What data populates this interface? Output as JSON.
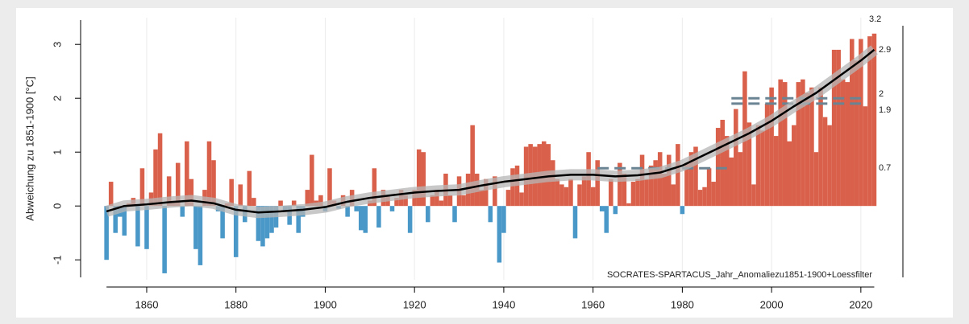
{
  "chart_data": {
    "type": "bar",
    "ylabel": "Abweichung zu 1851-1900 [°C]",
    "annotation": "SOCRATES-SPARTACUS_Jahr_Anomaliezu1851-1900+Loessfilter",
    "positive_color": "#d9604a",
    "negative_color": "#4a98c8",
    "x": [
      1851,
      1852,
      1853,
      1854,
      1855,
      1856,
      1857,
      1858,
      1859,
      1860,
      1861,
      1862,
      1863,
      1864,
      1865,
      1866,
      1867,
      1868,
      1869,
      1870,
      1871,
      1872,
      1873,
      1874,
      1875,
      1876,
      1877,
      1878,
      1879,
      1880,
      1881,
      1882,
      1883,
      1884,
      1885,
      1886,
      1887,
      1888,
      1889,
      1890,
      1891,
      1892,
      1893,
      1894,
      1895,
      1896,
      1897,
      1898,
      1899,
      1900,
      1901,
      1902,
      1903,
      1904,
      1905,
      1906,
      1907,
      1908,
      1909,
      1910,
      1911,
      1912,
      1913,
      1914,
      1915,
      1916,
      1917,
      1918,
      1919,
      1920,
      1921,
      1922,
      1923,
      1924,
      1925,
      1926,
      1927,
      1928,
      1929,
      1930,
      1931,
      1932,
      1933,
      1934,
      1935,
      1936,
      1937,
      1938,
      1939,
      1940,
      1941,
      1942,
      1943,
      1944,
      1945,
      1946,
      1947,
      1948,
      1949,
      1950,
      1951,
      1952,
      1953,
      1954,
      1955,
      1956,
      1957,
      1958,
      1959,
      1960,
      1961,
      1962,
      1963,
      1964,
      1965,
      1966,
      1967,
      1968,
      1969,
      1970,
      1971,
      1972,
      1973,
      1974,
      1975,
      1976,
      1977,
      1978,
      1979,
      1980,
      1981,
      1982,
      1983,
      1984,
      1985,
      1986,
      1987,
      1988,
      1989,
      1990,
      1991,
      1992,
      1993,
      1994,
      1995,
      1996,
      1997,
      1998,
      1999,
      2000,
      2001,
      2002,
      2003,
      2004,
      2005,
      2006,
      2007,
      2008,
      2009,
      2010,
      2011,
      2012,
      2013,
      2014,
      2015,
      2016,
      2017,
      2018,
      2019,
      2020,
      2021,
      2022,
      2023
    ],
    "values": [
      -1.0,
      0.45,
      -0.5,
      -0.2,
      -0.55,
      0.05,
      0.15,
      -0.75,
      0.7,
      -0.8,
      0.25,
      1.05,
      1.35,
      -1.25,
      0.55,
      0.1,
      0.8,
      -0.2,
      1.2,
      0.5,
      -0.8,
      -1.1,
      0.3,
      1.2,
      0.85,
      -0.1,
      -0.6,
      0.05,
      0.5,
      -0.95,
      0.4,
      -0.3,
      0.65,
      0.15,
      -0.65,
      -0.75,
      -0.6,
      -0.5,
      -0.4,
      0.1,
      -0.1,
      -0.35,
      0.1,
      -0.5,
      -0.2,
      0.3,
      0.95,
      0.1,
      0.2,
      -0.1,
      0.7,
      0.1,
      -0.05,
      0.2,
      -0.2,
      0.3,
      -0.1,
      -0.45,
      -0.5,
      0.1,
      0.7,
      -0.4,
      0.3,
      0.2,
      -0.1,
      0.15,
      0.3,
      0.2,
      -0.5,
      0.3,
      1.05,
      1.0,
      -0.3,
      0.2,
      0.3,
      0.1,
      0.6,
      0.2,
      -0.3,
      0.55,
      0.2,
      0.6,
      1.5,
      0.6,
      0.3,
      0.5,
      -0.3,
      0.55,
      -1.05,
      -0.5,
      0.3,
      0.7,
      0.75,
      0.25,
      1.1,
      1.15,
      1.1,
      1.15,
      1.2,
      1.15,
      0.85,
      0.5,
      0.4,
      0.35,
      0.5,
      -0.6,
      0.4,
      0.55,
      1.0,
      0.35,
      0.85,
      -0.1,
      -0.5,
      0.5,
      -0.15,
      0.8,
      0.6,
      0.05,
      0.45,
      0.5,
      0.95,
      0.5,
      0.75,
      0.85,
      1.0,
      0.6,
      0.95,
      0.4,
      1.15,
      -0.15,
      0.8,
      1.0,
      1.1,
      0.3,
      0.35,
      0.7,
      0.45,
      1.45,
      1.6,
      1.3,
      0.9,
      1.8,
      1.0,
      2.5,
      1.55,
      0.4,
      1.5,
      1.4,
      1.9,
      2.2,
      1.3,
      2.35,
      2.3,
      1.2,
      1.5,
      2.3,
      2.35,
      2.1,
      2.2,
      1.0,
      2.2,
      1.65,
      1.5,
      2.9,
      2.9,
      2.35,
      2.3,
      3.1,
      2.7,
      3.1,
      1.85,
      3.15,
      3.2
    ],
    "smooth": {
      "color": "#000000",
      "band_color": "#b5b5b5",
      "x": [
        1851,
        1855,
        1860,
        1865,
        1870,
        1875,
        1880,
        1885,
        1890,
        1895,
        1900,
        1905,
        1910,
        1915,
        1920,
        1925,
        1930,
        1935,
        1940,
        1945,
        1950,
        1955,
        1960,
        1965,
        1970,
        1975,
        1980,
        1985,
        1990,
        1995,
        2000,
        2005,
        2010,
        2015,
        2020,
        2023
      ],
      "values": [
        -0.1,
        0.0,
        0.03,
        0.07,
        0.1,
        0.05,
        -0.07,
        -0.12,
        -0.1,
        -0.07,
        -0.02,
        0.08,
        0.15,
        0.2,
        0.25,
        0.28,
        0.3,
        0.38,
        0.45,
        0.5,
        0.55,
        0.58,
        0.58,
        0.55,
        0.57,
        0.62,
        0.75,
        0.95,
        1.15,
        1.35,
        1.58,
        1.85,
        2.1,
        2.4,
        2.7,
        2.9
      ]
    },
    "reference_lines": [
      {
        "start": 1961,
        "end": 1990,
        "value": 0.7,
        "color": "#6a8493"
      },
      {
        "start": 1991,
        "end": 2020,
        "value": 1.9,
        "color": "#6a8493"
      },
      {
        "start": 1991,
        "end": 2020,
        "value": 2,
        "color": "#6a8493"
      }
    ],
    "xlim": [
      1850,
      2024
    ],
    "xticks": [
      1860,
      1880,
      1900,
      1920,
      1940,
      1960,
      1980,
      2000,
      2020
    ],
    "ylim": [
      -1.4,
      3.6
    ],
    "yticks": [
      -1,
      0,
      1,
      2,
      3
    ],
    "grid": "x"
  }
}
